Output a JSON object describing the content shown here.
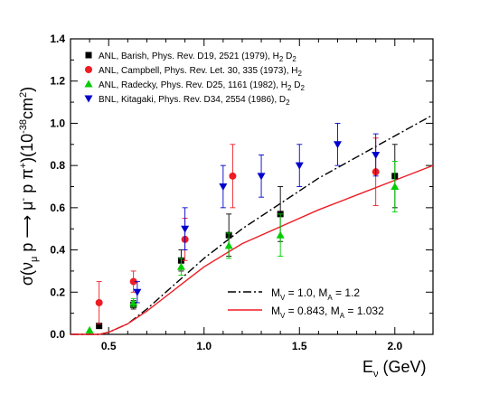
{
  "chart_data": {
    "type": "scatter",
    "xlabel": {
      "main": "E",
      "sub": "ν",
      "unit": " (GeV)"
    },
    "ylabel": "σ(ν_μ p ⟶ μ⁻ p π⁺)(10⁻³⁸cm²)",
    "xlim": [
      0.3,
      2.2
    ],
    "ylim": [
      0,
      1.4
    ],
    "xticks": [
      0.5,
      1.0,
      1.5,
      2.0
    ],
    "xtick_labels": [
      "0.5",
      "1.0",
      "1.5",
      "2.0"
    ],
    "yticks": [
      0,
      0.2,
      0.4,
      0.6,
      0.8,
      1.0,
      1.2,
      1.4
    ],
    "ytick_labels": [
      "0.0",
      "0.2",
      "0.4",
      "0.6",
      "0.8",
      "1.0",
      "1.2",
      "1.4"
    ],
    "legend_position": "top-left",
    "datasets": [
      {
        "name": "ANL, Barish, Phys. Rev. D19, 2521 (1979), H",
        "sub": "2",
        "name_after": " D",
        "sub2": "2",
        "marker": "square",
        "color": "#000000",
        "x": [
          0.45,
          0.63,
          0.88,
          1.13,
          1.4,
          2.0
        ],
        "y": [
          0.04,
          0.14,
          0.35,
          0.47,
          0.57,
          0.75
        ],
        "err": [
          0.0,
          0.02,
          0.05,
          0.1,
          0.13,
          0.15
        ]
      },
      {
        "name": "ANL, Campbell, Phys. Rev. Let. 30, 335 (1973), H",
        "sub": "2",
        "name_after": "",
        "sub2": "",
        "marker": "circle",
        "color": "#ee1c24",
        "x": [
          0.45,
          0.63,
          0.9,
          1.15,
          1.9
        ],
        "y": [
          0.15,
          0.25,
          0.45,
          0.75,
          0.77
        ],
        "err": [
          0.1,
          0.05,
          0.1,
          0.15,
          0.16
        ]
      },
      {
        "name": "ANL, Radecky, Phys. Rev. D25, 1161 (1982), H",
        "sub": "2",
        "name_after": " D",
        "sub2": "2",
        "marker": "triangle-up",
        "color": "#00cc00",
        "x": [
          0.4,
          0.63,
          0.88,
          1.13,
          1.4,
          2.0
        ],
        "y": [
          0.02,
          0.15,
          0.32,
          0.42,
          0.47,
          0.7
        ],
        "err": [
          0.0,
          0.02,
          0.04,
          0.06,
          0.1,
          0.12
        ]
      },
      {
        "name": "BNL, Kitagaki, Phys. Rev. D34, 2554 (1986), D",
        "sub": "2",
        "name_after": "",
        "sub2": "",
        "marker": "triangle-down",
        "color": "#0000cc",
        "x": [
          0.65,
          0.9,
          1.1,
          1.3,
          1.5,
          1.7,
          1.9
        ],
        "y": [
          0.2,
          0.5,
          0.7,
          0.75,
          0.8,
          0.9,
          0.85
        ],
        "err": [
          0.05,
          0.1,
          0.1,
          0.1,
          0.1,
          0.1,
          0.1
        ]
      }
    ],
    "series": [
      {
        "name": "M_V = 1.0, M_A = 1.2",
        "color": "#000000",
        "style": "dash-dot",
        "x": [
          0.3,
          0.45,
          0.5,
          0.55,
          0.6,
          0.7,
          0.8,
          0.9,
          1.0,
          1.2,
          1.4,
          1.6,
          1.8,
          2.0,
          2.2
        ],
        "y": [
          0.0,
          0.0,
          0.01,
          0.03,
          0.05,
          0.12,
          0.2,
          0.28,
          0.36,
          0.5,
          0.62,
          0.74,
          0.84,
          0.94,
          1.04
        ]
      },
      {
        "name": "M_V = 0.843, M_A = 1.032",
        "color": "#ee1c24",
        "style": "solid",
        "x": [
          0.3,
          0.45,
          0.5,
          0.55,
          0.6,
          0.7,
          0.8,
          0.9,
          1.0,
          1.2,
          1.4,
          1.6,
          1.8,
          2.0,
          2.2
        ],
        "y": [
          0.0,
          0.0,
          0.01,
          0.03,
          0.05,
          0.11,
          0.18,
          0.25,
          0.32,
          0.43,
          0.51,
          0.59,
          0.66,
          0.73,
          0.8
        ]
      }
    ],
    "fit_legend": [
      {
        "pre": "M",
        "s1": "V",
        "mid": " = 1.0, M",
        "s2": "A",
        "post": " = 1.2"
      },
      {
        "pre": "M",
        "s1": "V",
        "mid": " = 0.843, M",
        "s2": "A",
        "post": " = 1.032"
      }
    ]
  }
}
